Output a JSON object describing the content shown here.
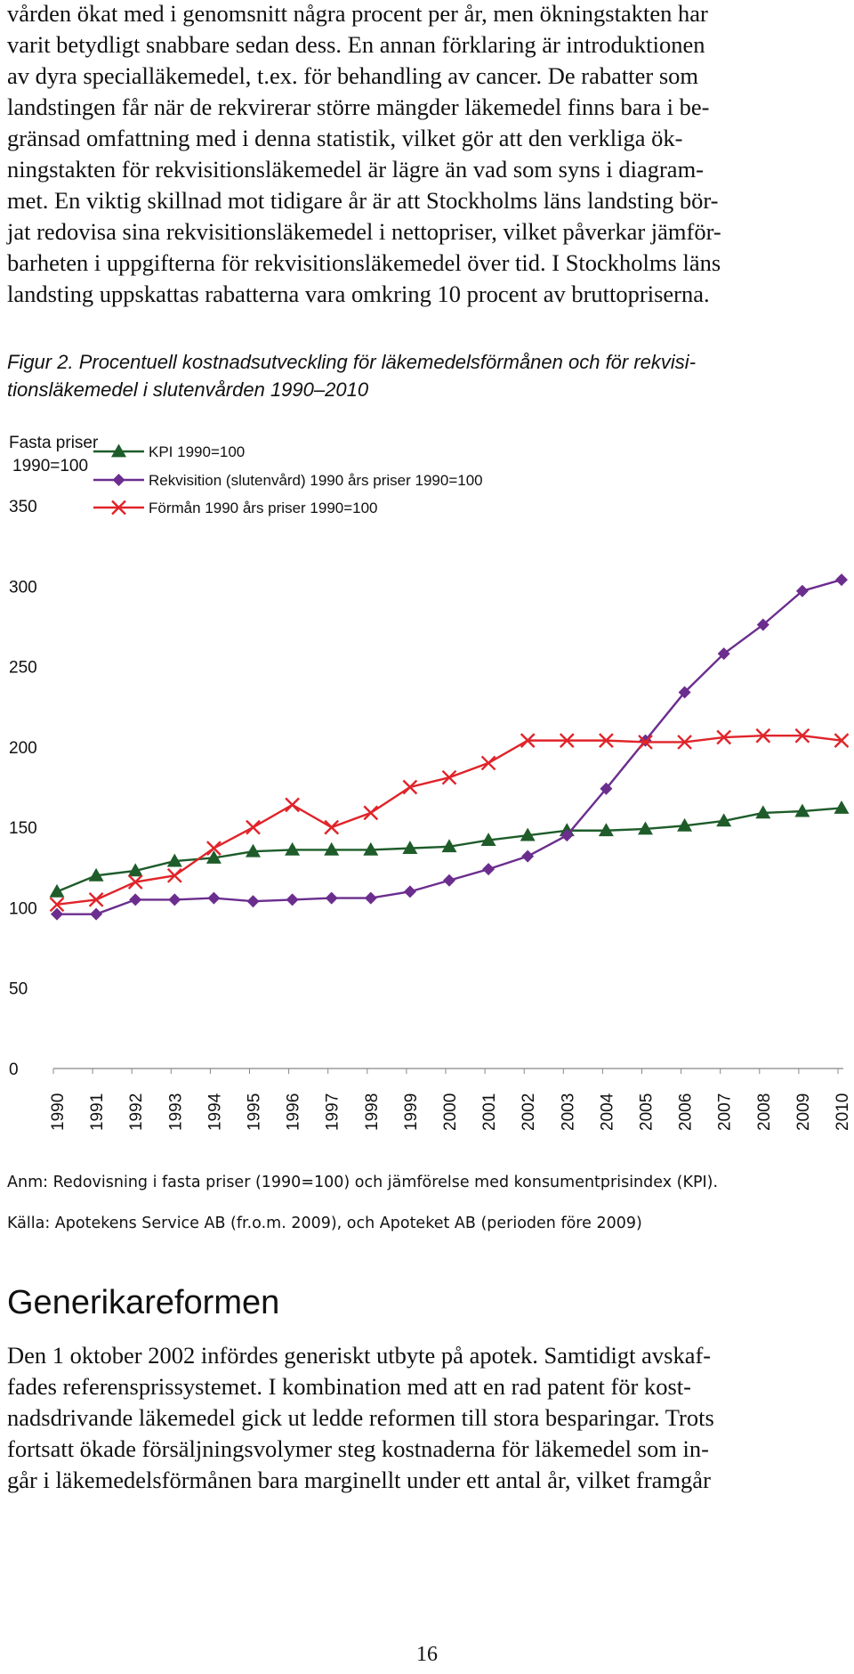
{
  "intro_paragraph": {
    "lines": [
      "vården ökat med i genomsnitt några procent per år, men ökningstakten har",
      "varit betydligt snabbare sedan dess. En annan förklaring är introduktionen",
      "av dyra specialläkemedel, t.ex. för behandling av cancer. De rabatter som",
      "landstingen får när de rekvirerar större mängder läkemedel finns bara i be-",
      "gränsad omfattning med i denna statistik, vilket gör att den verkliga ök-",
      "ningstakten för rekvisitionsläkemedel är lägre än vad som syns i diagram-",
      "met. En viktig skillnad mot tidigare år är att Stockholms läns landsting bör-",
      "jat redovisa sina rekvisitionsläkemedel i nettopriser, vilket påverkar jämför-",
      "barheten i uppgifterna för rekvisitionsläkemedel över tid. I Stockholms läns",
      "landsting uppskattas rabatterna vara omkring 10 procent av bruttopriserna."
    ]
  },
  "figure_caption": {
    "lines": [
      "Figur 2. Procentuell kostnadsutveckling för läkemedelsförmånen och för rekvisi-",
      "tionsläkemedel i slutenvården 1990–2010"
    ]
  },
  "chart_data": {
    "type": "line",
    "y_axis_title_lines": [
      "Fasta priser",
      "1990=100"
    ],
    "ylim": [
      0,
      350
    ],
    "y_ticks": [
      0,
      50,
      100,
      150,
      200,
      250,
      300,
      350
    ],
    "grid": false,
    "legend_position": "top-left",
    "categories": [
      "1990",
      "1991",
      "1992",
      "1993",
      "1994",
      "1995",
      "1996",
      "1997",
      "1998",
      "1999",
      "2000",
      "2001",
      "2002",
      "2003",
      "2004",
      "2005",
      "2006",
      "2007",
      "2008",
      "2009",
      "2010"
    ],
    "series": [
      {
        "name": "KPI 1990=100",
        "marker": "triangle",
        "color": "#1e5c2a",
        "values": [
          110,
          120,
          123,
          129,
          131,
          135,
          136,
          136,
          136,
          137,
          138,
          142,
          145,
          148,
          148,
          149,
          151,
          154,
          159,
          160,
          162
        ]
      },
      {
        "name": "Rekvisition (slutenvård) 1990 års priser 1990=100",
        "marker": "diamond",
        "color": "#6b2d8e",
        "values": [
          96,
          96,
          105,
          105,
          106,
          104,
          105,
          106,
          106,
          110,
          117,
          124,
          132,
          145,
          174,
          204,
          234,
          258,
          276,
          297,
          304
        ]
      },
      {
        "name": "Förmån 1990 års priser 1990=100",
        "marker": "cross",
        "color": "#e0242a",
        "values": [
          102,
          105,
          116,
          120,
          137,
          150,
          164,
          150,
          159,
          175,
          181,
          190,
          204,
          204,
          204,
          203,
          203,
          206,
          207,
          207,
          204
        ]
      }
    ]
  },
  "notes": {
    "anm": "Anm: Redovisning i fasta priser (1990=100) och jämförelse med konsumentprisindex (KPI).",
    "kalla": "Källa: Apotekens Service AB (fr.o.m. 2009), och Apoteket AB (perioden före 2009)"
  },
  "section": {
    "heading": "Generikareformen",
    "lines": [
      "Den 1 oktober 2002 infördes generiskt utbyte på apotek. Samtidigt avskaf-",
      "fades referensprissystemet. I kombination med att en rad patent för kost-",
      "nadsdrivande läkemedel gick ut ledde reformen till stora besparingar. Trots",
      "fortsatt ökade försäljningsvolymer steg kostnaderna för läkemedel som in-",
      "går i läkemedelsförmånen bara marginellt under ett antal år, vilket framgår"
    ]
  },
  "page_number": "16"
}
